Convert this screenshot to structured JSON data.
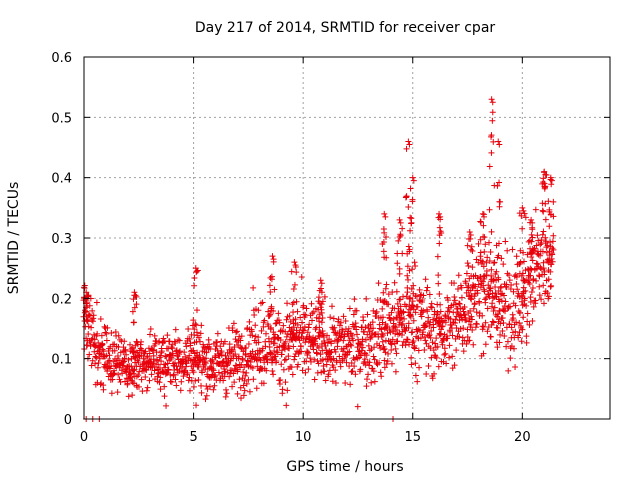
{
  "chart_data": {
    "type": "scatter",
    "title": "Day 217 of 2014, SRMTID for receiver cpar",
    "xlabel": "GPS time / hours",
    "ylabel": "SRMTID / TECUs",
    "xlim": [
      0,
      24
    ],
    "ylim": [
      0,
      0.6
    ],
    "x_ticks": [
      0,
      5,
      10,
      15,
      20
    ],
    "y_ticks": [
      0,
      0.1,
      0.2,
      0.3,
      0.4,
      0.5,
      0.6
    ],
    "x_tick_labels": [
      "0",
      "5",
      "10",
      "15",
      "20"
    ],
    "y_tick_labels": [
      "0",
      "0.1",
      "0.2",
      "0.3",
      "0.4",
      "0.5",
      "0.6"
    ],
    "grid": true,
    "marker": "plus",
    "series_color": "#e8000b",
    "zero_markers_x": [
      0.1,
      0.4,
      0.7,
      14.1
    ],
    "trend": [
      {
        "x": 0.0,
        "y": 0.17,
        "spread": 0.05
      },
      {
        "x": 0.5,
        "y": 0.13,
        "spread": 0.05
      },
      {
        "x": 1.0,
        "y": 0.1,
        "spread": 0.035
      },
      {
        "x": 2.0,
        "y": 0.09,
        "spread": 0.035
      },
      {
        "x": 3.0,
        "y": 0.09,
        "spread": 0.035
      },
      {
        "x": 4.0,
        "y": 0.1,
        "spread": 0.035
      },
      {
        "x": 5.0,
        "y": 0.1,
        "spread": 0.04
      },
      {
        "x": 6.0,
        "y": 0.09,
        "spread": 0.035
      },
      {
        "x": 7.0,
        "y": 0.1,
        "spread": 0.04
      },
      {
        "x": 8.0,
        "y": 0.13,
        "spread": 0.05
      },
      {
        "x": 9.0,
        "y": 0.12,
        "spread": 0.05
      },
      {
        "x": 10.0,
        "y": 0.13,
        "spread": 0.05
      },
      {
        "x": 11.0,
        "y": 0.12,
        "spread": 0.045
      },
      {
        "x": 12.0,
        "y": 0.12,
        "spread": 0.045
      },
      {
        "x": 13.0,
        "y": 0.13,
        "spread": 0.05
      },
      {
        "x": 14.0,
        "y": 0.15,
        "spread": 0.06
      },
      {
        "x": 15.0,
        "y": 0.17,
        "spread": 0.06
      },
      {
        "x": 16.0,
        "y": 0.14,
        "spread": 0.05
      },
      {
        "x": 17.0,
        "y": 0.16,
        "spread": 0.055
      },
      {
        "x": 18.0,
        "y": 0.22,
        "spread": 0.06
      },
      {
        "x": 19.0,
        "y": 0.18,
        "spread": 0.06
      },
      {
        "x": 20.0,
        "y": 0.2,
        "spread": 0.07
      },
      {
        "x": 21.0,
        "y": 0.28,
        "spread": 0.07
      },
      {
        "x": 21.4,
        "y": 0.25,
        "spread": 0.05
      }
    ],
    "spikes": [
      {
        "x": 0.1,
        "peak": 0.21
      },
      {
        "x": 2.3,
        "peak": 0.21
      },
      {
        "x": 5.1,
        "peak": 0.25
      },
      {
        "x": 8.6,
        "peak": 0.27
      },
      {
        "x": 9.6,
        "peak": 0.26
      },
      {
        "x": 10.8,
        "peak": 0.23
      },
      {
        "x": 13.7,
        "peak": 0.34
      },
      {
        "x": 14.4,
        "peak": 0.33
      },
      {
        "x": 14.8,
        "peak": 0.46
      },
      {
        "x": 15.0,
        "peak": 0.4
      },
      {
        "x": 16.2,
        "peak": 0.34
      },
      {
        "x": 17.6,
        "peak": 0.31
      },
      {
        "x": 18.2,
        "peak": 0.34
      },
      {
        "x": 18.6,
        "peak": 0.53
      },
      {
        "x": 18.9,
        "peak": 0.46
      },
      {
        "x": 20.0,
        "peak": 0.35
      },
      {
        "x": 20.4,
        "peak": 0.33
      },
      {
        "x": 21.0,
        "peak": 0.41
      },
      {
        "x": 21.3,
        "peak": 0.4
      }
    ]
  }
}
